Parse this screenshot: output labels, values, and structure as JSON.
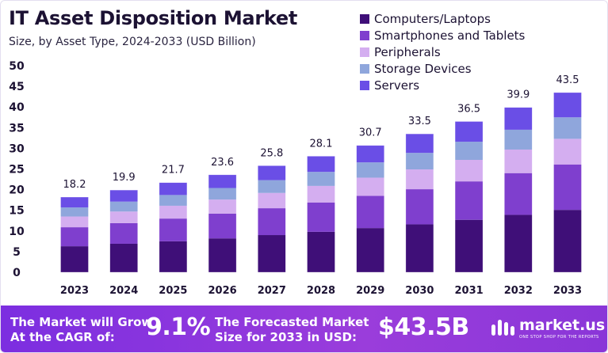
{
  "header": {
    "title": "IT Asset Disposition Market",
    "subtitle": "Size, by Asset Type, 2024-2033 (USD Billion)"
  },
  "colors": {
    "computers": "#3f0f78",
    "smartphones": "#7f3fce",
    "peripherals": "#d4aef0",
    "storage": "#8fa6dc",
    "servers": "#6a4ee6",
    "footer": "#8e3ce0"
  },
  "chart_data": {
    "type": "bar",
    "stacked": true,
    "title": "IT Asset Disposition Market",
    "subtitle": "Size, by Asset Type, 2024-2033 (USD Billion)",
    "categories": [
      "2023",
      "2024",
      "2025",
      "2026",
      "2027",
      "2028",
      "2029",
      "2030",
      "2031",
      "2032",
      "2033"
    ],
    "totals": [
      18.2,
      19.9,
      21.7,
      23.6,
      25.8,
      28.1,
      30.7,
      33.5,
      36.5,
      39.9,
      43.5
    ],
    "series": [
      {
        "name": "Computers/Laptops",
        "color": "#3f0f78",
        "values": [
          6.3,
          6.9,
          7.5,
          8.2,
          9.0,
          9.8,
          10.7,
          11.6,
          12.7,
          13.9,
          15.1
        ]
      },
      {
        "name": "Smartphones and Tablets",
        "color": "#7f3fce",
        "values": [
          4.6,
          5.0,
          5.5,
          6.0,
          6.5,
          7.1,
          7.8,
          8.5,
          9.3,
          10.1,
          11.0
        ]
      },
      {
        "name": "Peripherals",
        "color": "#d4aef0",
        "values": [
          2.6,
          2.8,
          3.1,
          3.4,
          3.7,
          4.0,
          4.4,
          4.8,
          5.2,
          5.7,
          6.2
        ]
      },
      {
        "name": "Storage Devices",
        "color": "#8fa6dc",
        "values": [
          2.2,
          2.4,
          2.6,
          2.8,
          3.1,
          3.4,
          3.7,
          4.0,
          4.4,
          4.8,
          5.2
        ]
      },
      {
        "name": "Servers",
        "color": "#6a4ee6",
        "values": [
          2.5,
          2.8,
          3.0,
          3.2,
          3.5,
          3.8,
          4.1,
          4.6,
          4.9,
          5.4,
          6.0
        ]
      }
    ],
    "ylim": [
      0,
      50
    ],
    "yticks": [
      0,
      5,
      10,
      15,
      20,
      25,
      30,
      35,
      40,
      45,
      50
    ],
    "grid": false,
    "legend": "top-right"
  },
  "footer": {
    "grow_line1": "The Market will Grow",
    "grow_line2": "At the CAGR of:",
    "cagr": "9.1%",
    "forecast_line1": "The Forecasted Market",
    "forecast_line2": "Size for 2033 in USD:",
    "size": "$43.5B"
  },
  "brand": {
    "name": "market.us",
    "tagline": "ONE STOP SHOP FOR THE REPORTS",
    "icon": "market-us-logo-icon"
  }
}
